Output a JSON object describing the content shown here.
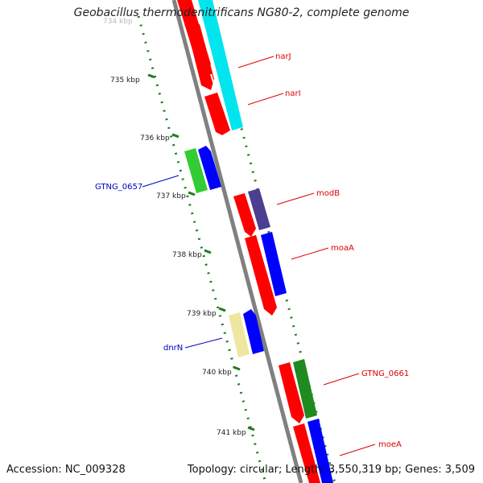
{
  "title": "Geobacillus thermodenitrificans NG80-2, complete genome",
  "footer": {
    "accession": "Accession: NC_009328",
    "summary": "Topology: circular; Length: 3,550,319 bp; Genes: 3,509"
  },
  "colors": {
    "backbone": "#808080",
    "ticks": "#1f7a1f",
    "red": "#ff0000",
    "cyan": "#00e5ee",
    "blue": "#0000ff",
    "green": "#33cc33",
    "darkgreen": "#1f8a1f",
    "slate": "#4b3f8f",
    "khaki": "#efe6a0",
    "label_forward": "#dd0000",
    "label_reverse": "#0000bb"
  },
  "scale": {
    "unit": "kbp",
    "labels": [
      "734 kbp",
      "735 kbp",
      "736 kbp",
      "737 kbp",
      "738 kbp",
      "739 kbp",
      "740 kbp",
      "741 kbp"
    ]
  },
  "genes": [
    {
      "name": "narJ",
      "strand": "forward",
      "track": "right"
    },
    {
      "name": "narI",
      "strand": "forward",
      "track": "right"
    },
    {
      "name": "GTNG_0657",
      "strand": "reverse",
      "track": "left"
    },
    {
      "name": "modB",
      "strand": "forward",
      "track": "right"
    },
    {
      "name": "moaA",
      "strand": "forward",
      "track": "right"
    },
    {
      "name": "dnrN",
      "strand": "reverse",
      "track": "left"
    },
    {
      "name": "GTNG_0661",
      "strand": "forward",
      "track": "right"
    },
    {
      "name": "moeA",
      "strand": "forward",
      "track": "right"
    }
  ]
}
